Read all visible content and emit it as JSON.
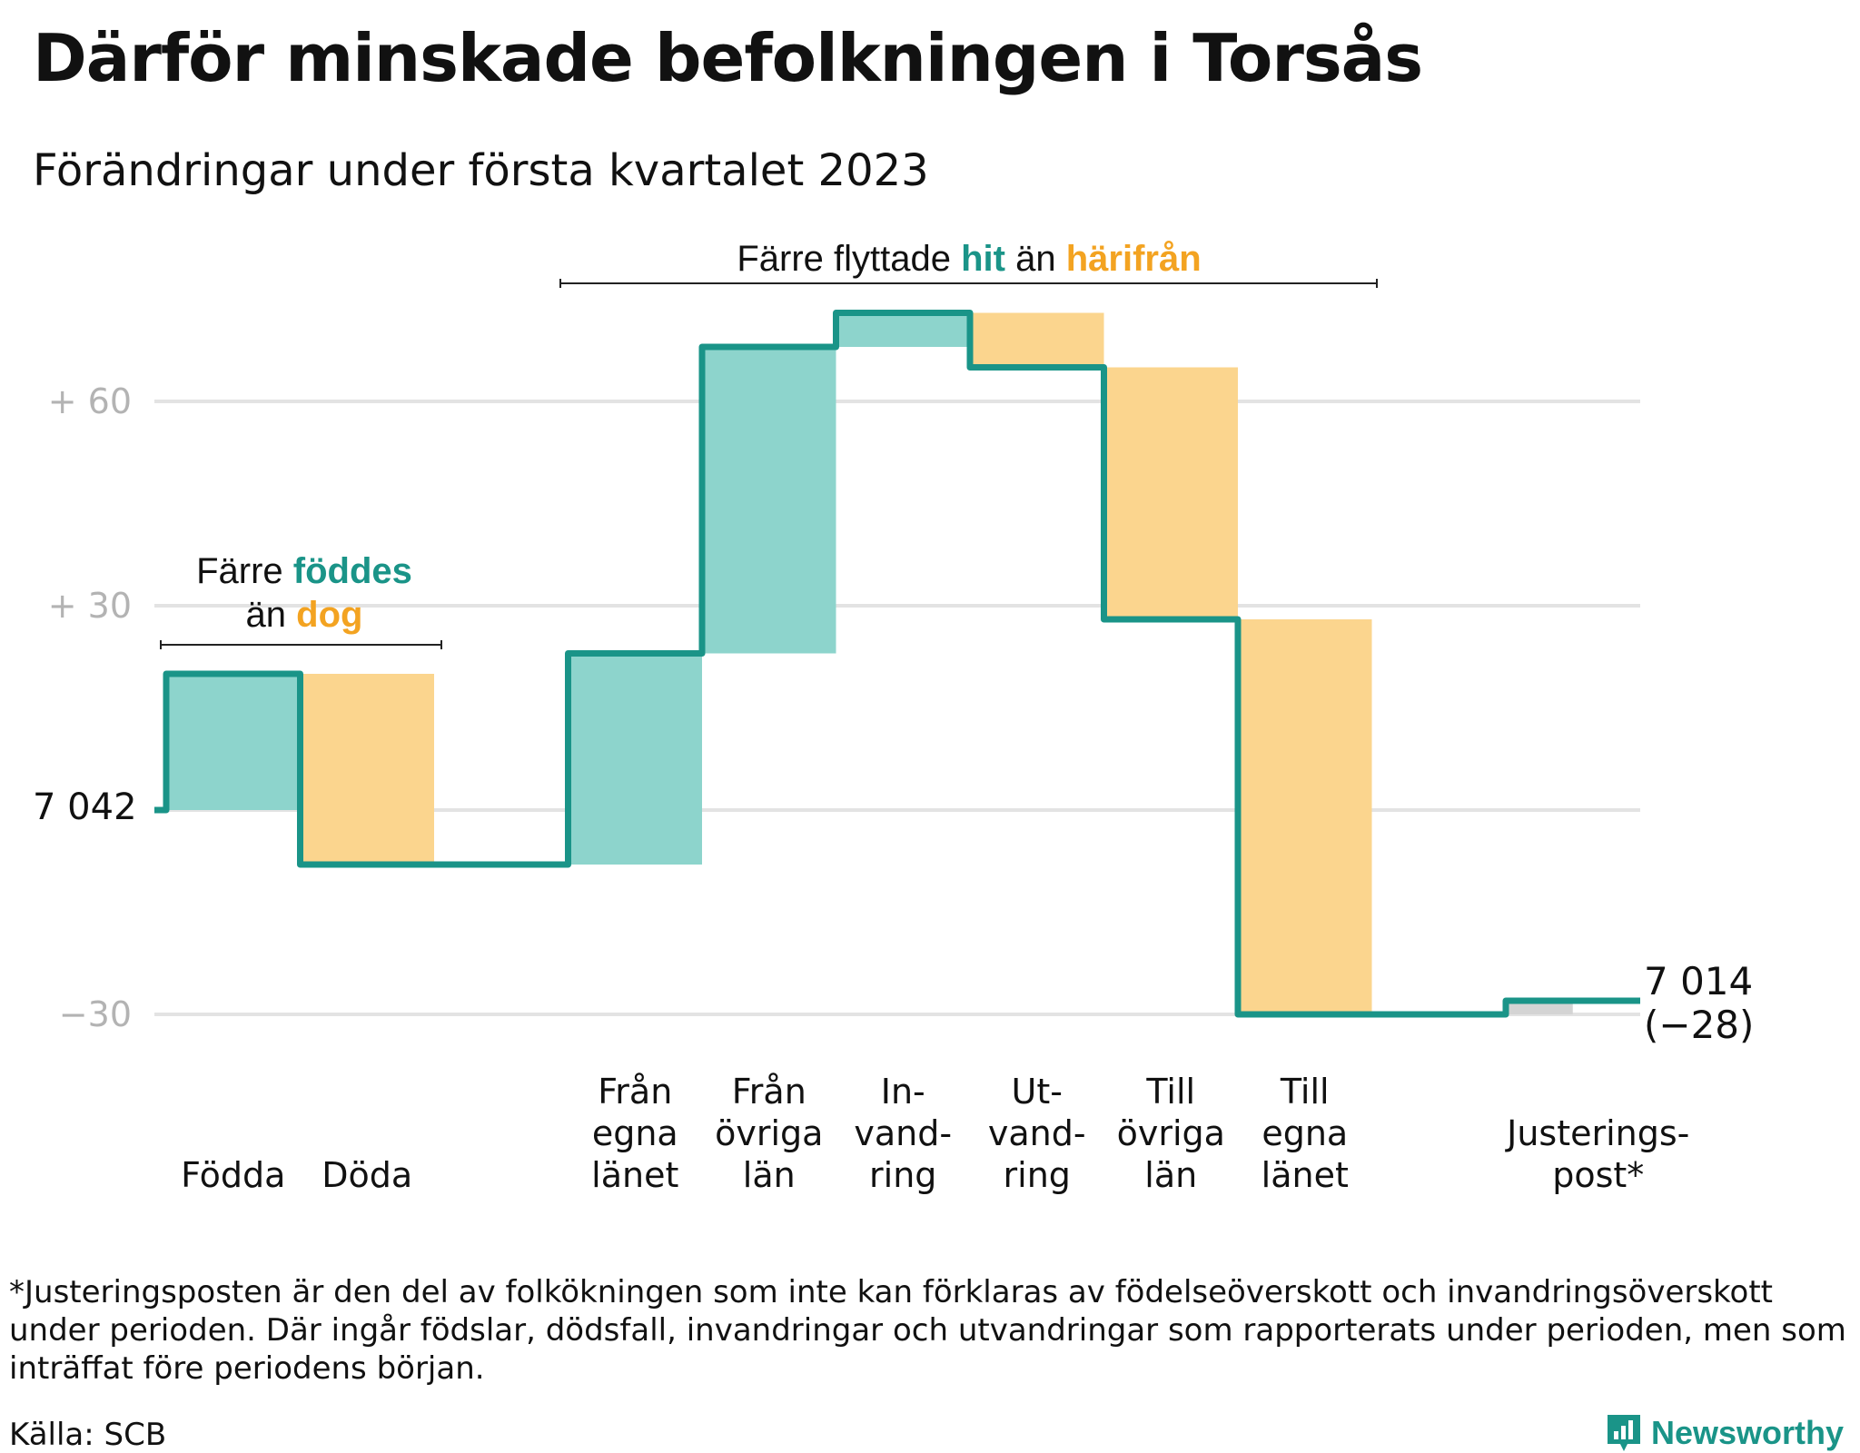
{
  "title": "Därför minskade befolkningen i Torsås",
  "subtitle": "Förändringar under första kvartalet 2023",
  "colors": {
    "inflow": "#8dd4cc",
    "outflow": "#fbd58e",
    "adjustment": "#d4d4d4",
    "line": "#1a9488",
    "grid": "#e3e3e3",
    "highlight_in": "#1a9488",
    "highlight_out": "#f3a321"
  },
  "chart_data": {
    "type": "waterfall",
    "start_label": "7 042",
    "start_value": 7042,
    "end_label": "7 014",
    "end_change_label": "(−28)",
    "end_value": 7014,
    "y_axis": {
      "baseline": 7042,
      "ylim": [
        -30,
        75
      ],
      "ticks": [
        {
          "value": 60,
          "label": "+ 60"
        },
        {
          "value": 30,
          "label": "+ 30"
        },
        {
          "value": 0,
          "label": ""
        },
        {
          "value": -30,
          "label": "−30"
        }
      ]
    },
    "steps": [
      {
        "category": "Födda",
        "lines": [
          "Födda"
        ],
        "change": 20,
        "kind": "in"
      },
      {
        "category": "Döda",
        "lines": [
          "Döda"
        ],
        "change": -28,
        "kind": "out"
      },
      {
        "category": "gap",
        "lines": [],
        "change": 0,
        "kind": "gap"
      },
      {
        "category": "Från egna länet",
        "lines": [
          "Från",
          "egna",
          "länet"
        ],
        "change": 31,
        "kind": "in"
      },
      {
        "category": "Från övriga län",
        "lines": [
          "Från",
          "övriga",
          "län"
        ],
        "change": 45,
        "kind": "in"
      },
      {
        "category": "Invandring",
        "lines": [
          "In-",
          "vand-",
          "ring"
        ],
        "change": 5,
        "kind": "in"
      },
      {
        "category": "Utvandring",
        "lines": [
          "Ut-",
          "vand-",
          "ring"
        ],
        "change": -8,
        "kind": "out"
      },
      {
        "category": "Till övriga län",
        "lines": [
          "Till",
          "övriga",
          "län"
        ],
        "change": -37,
        "kind": "out"
      },
      {
        "category": "Till egna länet",
        "lines": [
          "Till",
          "egna",
          "länet"
        ],
        "change": -58,
        "kind": "out"
      },
      {
        "category": "gap",
        "lines": [],
        "change": 0,
        "kind": "gap"
      },
      {
        "category": "Justeringspost*",
        "lines": [
          "Justerings-",
          "post*"
        ],
        "change": 2,
        "kind": "adj"
      }
    ],
    "annotations": [
      {
        "text_before": "Färre ",
        "in_word": "föddes",
        "line2_before": "än ",
        "out_word": "dog"
      },
      {
        "text_before": "Färre flyttade ",
        "in_word": "hit",
        "middle": " än ",
        "out_word": "härifrån"
      }
    ]
  },
  "footnote": "*Justeringsposten är den del av folkökningen som inte kan förklaras av födelseöverskott och invandringsöverskott under perioden. Där ingår födslar, dödsfall, invandringar och utvandringar som rapporterats under perioden, men som inträffat före periodens början.",
  "source": "Källa: SCB",
  "brand": {
    "name": "Newsworthy",
    "icon": "newsworthy-logo-icon"
  }
}
